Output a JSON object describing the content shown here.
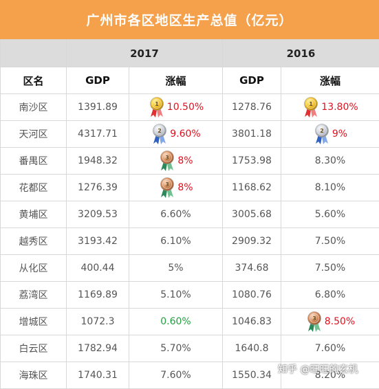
{
  "title": "广州市各区地区生产总值（亿元）",
  "years": [
    "2017",
    "2016"
  ],
  "headers": {
    "district": "区名",
    "gdp": "GDP",
    "growth": "涨幅"
  },
  "rows": [
    {
      "district": "南沙区",
      "gdp2017": "1391.89",
      "growth2017": "10.50%",
      "gdp2016": "1278.76",
      "growth2016": "13.80%"
    },
    {
      "district": "天河区",
      "gdp2017": "4317.71",
      "growth2017": "9.60%",
      "gdp2016": "3801.18",
      "growth2016": "9%"
    },
    {
      "district": "番禺区",
      "gdp2017": "1948.32",
      "growth2017": "8%",
      "gdp2016": "1753.98",
      "growth2016": "8.30%"
    },
    {
      "district": "花都区",
      "gdp2017": "1276.39",
      "growth2017": "8%",
      "gdp2016": "1168.62",
      "growth2016": "8.10%"
    },
    {
      "district": "黄埔区",
      "gdp2017": "3209.53",
      "growth2017": "6.60%",
      "gdp2016": "3005.68",
      "growth2016": "5.60%"
    },
    {
      "district": "越秀区",
      "gdp2017": "3193.42",
      "growth2017": "6.10%",
      "gdp2016": "2909.32",
      "growth2016": "7.50%"
    },
    {
      "district": "从化区",
      "gdp2017": "400.44",
      "growth2017": "5%",
      "gdp2016": "374.68",
      "growth2016": "7.50%"
    },
    {
      "district": "荔湾区",
      "gdp2017": "1169.89",
      "growth2017": "5.10%",
      "gdp2016": "1080.76",
      "growth2016": "6.80%"
    },
    {
      "district": "增城区",
      "gdp2017": "1072.3",
      "growth2017": "0.60%",
      "gdp2016": "1046.83",
      "growth2016": "8.50%"
    },
    {
      "district": "白云区",
      "gdp2017": "1782.94",
      "growth2017": "5.70%",
      "gdp2016": "1640.8",
      "growth2016": "7.60%"
    },
    {
      "district": "海珠区",
      "gdp2017": "1740.31",
      "growth2017": "7.60%",
      "gdp2016": "1550.34",
      "growth2016": "8.20%"
    }
  ],
  "medal_labels": {
    "gold": "1",
    "silver": "2",
    "bronze": "3"
  },
  "colors": {
    "header": "#f5a04a",
    "highlight_red": "#e0101e",
    "highlight_green": "#20a040"
  },
  "watermark": "知乎 @旺旺的玄机"
}
